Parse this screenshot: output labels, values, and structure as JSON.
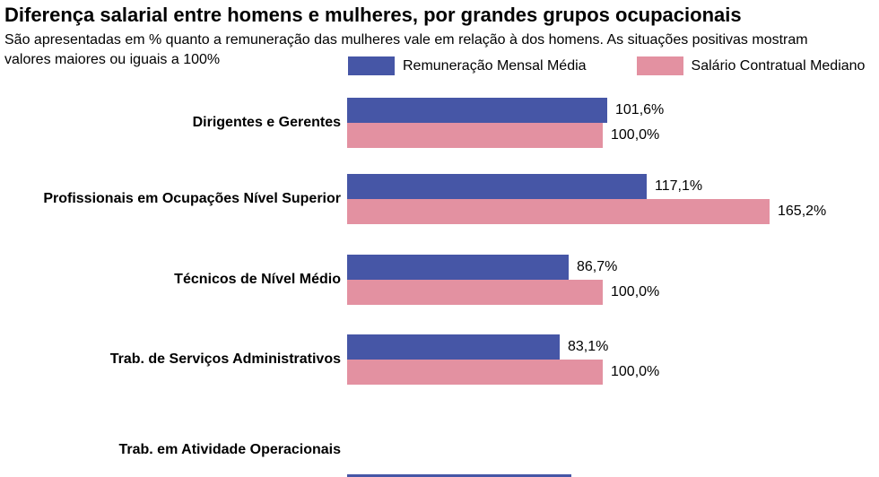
{
  "header": {
    "title": "Diferença salarial entre homens e mulheres, por grandes grupos ocupacionais",
    "subtitle": "São apresentadas em % quanto a remuneração das mulheres vale em relação à dos homens. As situações positivas mostram valores maiores ou iguais a 100%"
  },
  "chart_data": {
    "type": "bar",
    "orientation": "horizontal",
    "value_unit": "%",
    "title": "Diferença salarial entre homens e mulheres, por grandes grupos ocupacionais",
    "categories": [
      "Dirigentes e Gerentes",
      "Profissionais em Ocupações Nível Superior",
      "Técnicos de Nível Médio",
      "Trab. de Serviços Administrativos",
      "Trab. em Atividade Operacionais"
    ],
    "series": [
      {
        "name": "Remuneração Mensal Média",
        "color": "#4656A6",
        "values": [
          101.6,
          117.1,
          86.7,
          83.1,
          null
        ],
        "value_labels": [
          "101,6%",
          "117,1%",
          "86,7%",
          "83,1%",
          ""
        ]
      },
      {
        "name": "Salário Contratual Mediano",
        "color": "#E391A1",
        "values": [
          100.0,
          165.2,
          100.0,
          100.0,
          null
        ],
        "value_labels": [
          "100,0%",
          "165,2%",
          "100,0%",
          "100,0%",
          ""
        ]
      }
    ],
    "legend_position": "top",
    "grid": false,
    "notes": "Bars of the last category (Trab. em Atividade Operacionais) are cut off by the bottom edge of the screenshot; only a sliver of the first bar is visible."
  }
}
